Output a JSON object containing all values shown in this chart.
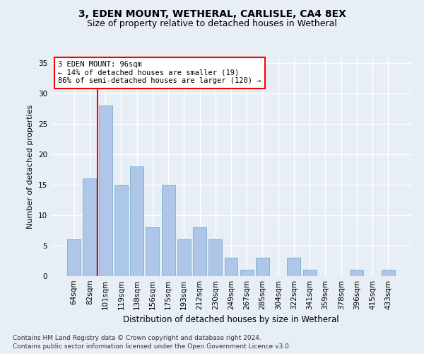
{
  "title1": "3, EDEN MOUNT, WETHERAL, CARLISLE, CA4 8EX",
  "title2": "Size of property relative to detached houses in Wetheral",
  "xlabel": "Distribution of detached houses by size in Wetheral",
  "ylabel": "Number of detached properties",
  "categories": [
    "64sqm",
    "82sqm",
    "101sqm",
    "119sqm",
    "138sqm",
    "156sqm",
    "175sqm",
    "193sqm",
    "212sqm",
    "230sqm",
    "249sqm",
    "267sqm",
    "285sqm",
    "304sqm",
    "322sqm",
    "341sqm",
    "359sqm",
    "378sqm",
    "396sqm",
    "415sqm",
    "433sqm"
  ],
  "values": [
    6,
    16,
    28,
    15,
    18,
    8,
    15,
    6,
    8,
    6,
    3,
    1,
    3,
    0,
    3,
    1,
    0,
    0,
    1,
    0,
    1
  ],
  "bar_color": "#aec6e8",
  "bar_edge_color": "#7aadd4",
  "annotation_text_line1": "3 EDEN MOUNT: 96sqm",
  "annotation_text_line2": "← 14% of detached houses are smaller (19)",
  "annotation_text_line3": "86% of semi-detached houses are larger (120) →",
  "vline_color": "red",
  "annotation_box_color": "white",
  "annotation_box_edge_color": "red",
  "ylim": [
    0,
    36
  ],
  "yticks": [
    0,
    5,
    10,
    15,
    20,
    25,
    30,
    35
  ],
  "footnote1": "Contains HM Land Registry data © Crown copyright and database right 2024.",
  "footnote2": "Contains public sector information licensed under the Open Government Licence v3.0.",
  "bg_color": "#e8eef6",
  "grid_color": "white",
  "title1_fontsize": 10,
  "title2_fontsize": 9,
  "ylabel_fontsize": 8,
  "xlabel_fontsize": 8.5,
  "tick_fontsize": 7.5,
  "footnote_fontsize": 6.5
}
